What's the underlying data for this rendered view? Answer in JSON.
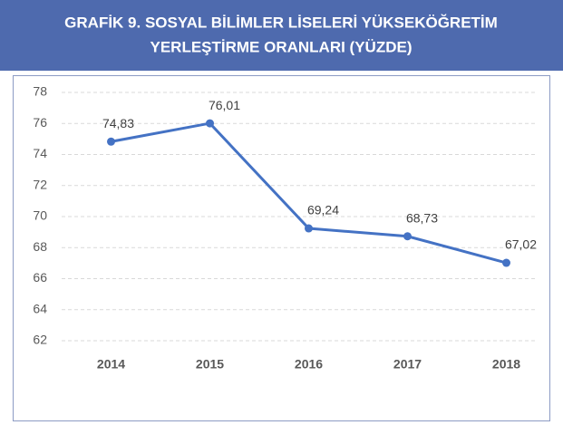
{
  "chart_data": {
    "type": "line",
    "title": [
      "GRAFİK 9. SOSYAL BİLİMLER LİSELERİ YÜKSEKÖĞRETİM",
      "YERLEŞTİRME ORANLARI (YÜZDE)"
    ],
    "categories": [
      "2014",
      "2015",
      "2016",
      "2017",
      "2018"
    ],
    "values": [
      74.83,
      76.01,
      69.24,
      68.73,
      67.02
    ],
    "value_labels": [
      "74,83",
      "76,01",
      "69,24",
      "68,73",
      "67,02"
    ],
    "color": "#4472c4",
    "ylim": [
      62,
      78
    ],
    "yticks": [
      62,
      64,
      66,
      68,
      70,
      72,
      74,
      76,
      78
    ],
    "grid": true
  }
}
